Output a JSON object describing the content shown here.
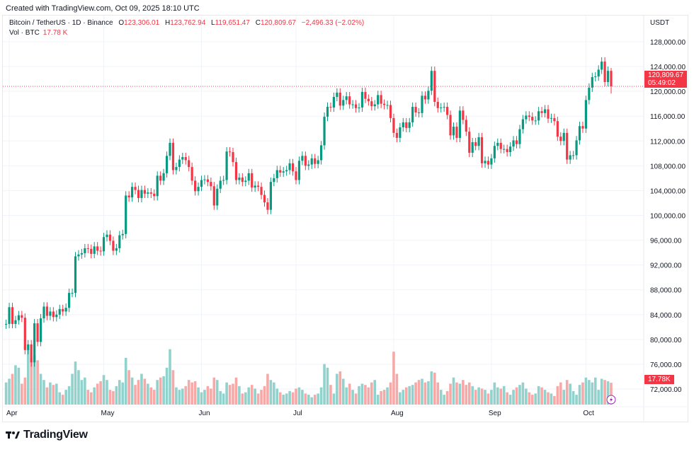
{
  "header": {
    "created": "Created with TradingView.com, Oct 09, 2025 18:10 UTC"
  },
  "legend": {
    "symbol": "Bitcoin / TetherUS · 1D · Binance",
    "o_label": "O",
    "o": "123,306.01",
    "h_label": "H",
    "h": "123,762.94",
    "l_label": "L",
    "l": "119,651.47",
    "c_label": "C",
    "c": "120,809.67",
    "change": "−2,496.33 (−2.02%)",
    "vol_label": "Vol · BTC",
    "vol": "17.78 K"
  },
  "price_axis": {
    "unit": "USDT",
    "ticks": [
      "128,000.00",
      "124,000.00",
      "120,000.00",
      "116,000.00",
      "112,000.00",
      "108,000.00",
      "104,000.00",
      "100,000.00",
      "96,000.00",
      "92,000.00",
      "88,000.00",
      "84,000.00",
      "80,000.00",
      "76,000.00",
      "72,000.00"
    ],
    "last_price": "120,809.67",
    "countdown": "05:49:02",
    "last_volume": "17.78K"
  },
  "brand": {
    "name": "TradingView"
  },
  "colors": {
    "up": "#089981",
    "down": "#f23645",
    "vol_up": "#92d2cc",
    "vol_down": "#f7a9a7",
    "grid": "#f0f3fa"
  },
  "chart_data": {
    "type": "candlestick",
    "interval": "1D",
    "x_tick_labels": [
      "Apr",
      "May",
      "Jun",
      "Jul",
      "Aug",
      "Sep",
      "Oct"
    ],
    "ylim": [
      70000,
      130000
    ],
    "grid": true,
    "first_date": "2025-03-31",
    "first_open": 82400,
    "last_candle": {
      "open": 123306.01,
      "high": 123762.94,
      "low": 119651.47,
      "close": 120809.67
    },
    "closes": [
      82500,
      85200,
      82500,
      83100,
      83900,
      83500,
      78300,
      79200,
      76300,
      82600,
      79600,
      83400,
      85300,
      83800,
      84500,
      83600,
      84000,
      84900,
      84500,
      85100,
      87500,
      87500,
      93400,
      93700,
      93900,
      94700,
      94600,
      93800,
      95000,
      94300,
      94200,
      96500,
      96900,
      95900,
      94300,
      94700,
      96800,
      97000,
      103200,
      102900,
      104600,
      104100,
      102800,
      104100,
      103500,
      103700,
      103500,
      103100,
      106400,
      105600,
      106800,
      109600,
      111700,
      107300,
      107800,
      109000,
      109400,
      108900,
      107800,
      105600,
      103900,
      104600,
      105700,
      105800,
      105400,
      104700,
      101600,
      104300,
      105600,
      105700,
      110300,
      110200,
      108600,
      105700,
      106100,
      105400,
      105600,
      106800,
      104500,
      104800,
      104600,
      103300,
      102100,
      100900,
      105400,
      106000,
      107300,
      106900,
      107100,
      107300,
      108400,
      107100,
      105700,
      108800,
      109600,
      108000,
      108200,
      109200,
      108300,
      108900,
      111300,
      115900,
      117500,
      117400,
      119100,
      119800,
      117700,
      118600,
      119200,
      117900,
      117900,
      117300,
      117400,
      119900,
      118800,
      118400,
      117600,
      117900,
      119400,
      118000,
      117800,
      117800,
      115700,
      113300,
      112500,
      114200,
      115000,
      114100,
      115000,
      117500,
      116600,
      116500,
      119300,
      118700,
      120100,
      123300,
      118300,
      117300,
      117400,
      117500,
      116200,
      112900,
      114300,
      112500,
      116900,
      115400,
      113500,
      110100,
      111800,
      111200,
      112600,
      108400,
      108800,
      108200,
      109200,
      111200,
      111700,
      110700,
      110700,
      110200,
      111100,
      112100,
      111500,
      113900,
      115500,
      116100,
      115900,
      115300,
      115300,
      116800,
      116500,
      117100,
      115600,
      115700,
      115200,
      112700,
      112000,
      113300,
      109000,
      109700,
      109700,
      112100,
      114400,
      114000,
      118600,
      120600,
      122300,
      122400,
      123500,
      124800,
      121500,
      123306,
      120810
    ],
    "volumes_k": [
      18,
      21,
      25,
      32,
      30,
      17,
      22,
      45,
      38,
      40,
      36,
      25,
      20,
      14,
      18,
      16,
      17,
      10,
      8,
      12,
      15,
      25,
      35,
      28,
      20,
      22,
      12,
      10,
      14,
      17,
      19,
      24,
      20,
      12,
      11,
      15,
      20,
      18,
      38,
      28,
      22,
      16,
      20,
      25,
      21,
      17,
      14,
      12,
      20,
      22,
      23,
      30,
      45,
      28,
      14,
      12,
      13,
      15,
      20,
      18,
      19,
      14,
      10,
      12,
      15,
      13,
      22,
      20,
      11,
      9,
      18,
      16,
      17,
      22,
      15,
      9,
      10,
      14,
      16,
      13,
      9,
      12,
      15,
      25,
      20,
      18,
      13,
      10,
      8,
      9,
      11,
      10,
      13,
      14,
      12,
      9,
      8,
      6,
      8,
      9,
      14,
      33,
      30,
      16,
      9,
      25,
      27,
      21,
      14,
      17,
      12,
      9,
      15,
      17,
      16,
      14,
      18,
      20,
      8,
      11,
      12,
      14,
      18,
      43,
      25,
      10,
      12,
      14,
      15,
      16,
      18,
      20,
      21,
      18,
      19,
      27,
      26,
      18,
      12,
      8,
      11,
      17,
      22,
      18,
      17,
      20,
      16,
      18,
      15,
      12,
      14,
      13,
      12,
      9,
      12,
      18,
      14,
      13,
      15,
      10,
      8,
      12,
      14,
      16,
      18,
      13,
      10,
      8,
      9,
      15,
      14,
      12,
      10,
      9,
      7,
      15,
      18,
      12,
      20,
      17,
      11,
      8,
      16,
      18,
      22,
      20,
      18,
      22,
      12,
      21,
      20,
      19,
      17.78
    ]
  }
}
